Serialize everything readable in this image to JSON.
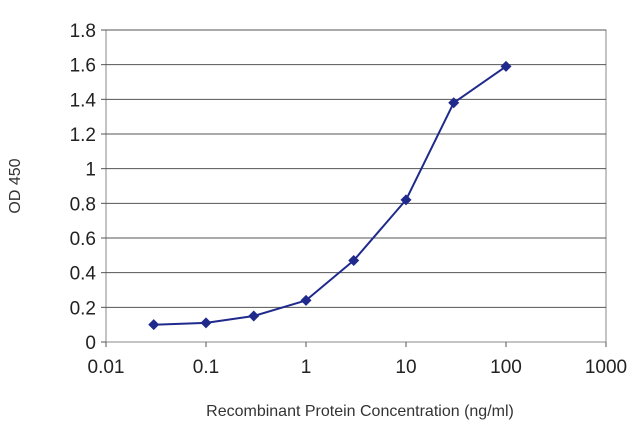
{
  "chart_data": {
    "type": "line",
    "xscale": "log",
    "xlabel": "Recombinant Protein Concentration (ng/ml)",
    "ylabel": "OD 450",
    "xlim": [
      0.01,
      1000
    ],
    "ylim": [
      0,
      1.8
    ],
    "xticks": [
      "0.01",
      "0.1",
      "1",
      "10",
      "100",
      "1000"
    ],
    "yticks": [
      "0",
      "0.2",
      "0.4",
      "0.6",
      "0.8",
      "1",
      "1.2",
      "1.4",
      "1.6",
      "1.8"
    ],
    "grid": true,
    "legend": "none",
    "series": [
      {
        "color": "#1f2a8c",
        "marker": "diamond",
        "points": [
          {
            "x": 0.03,
            "y": 0.1
          },
          {
            "x": 0.1,
            "y": 0.11
          },
          {
            "x": 0.3,
            "y": 0.15
          },
          {
            "x": 1,
            "y": 0.24
          },
          {
            "x": 3,
            "y": 0.47
          },
          {
            "x": 10,
            "y": 0.82
          },
          {
            "x": 30,
            "y": 1.38
          },
          {
            "x": 100,
            "y": 1.59
          }
        ]
      }
    ]
  }
}
